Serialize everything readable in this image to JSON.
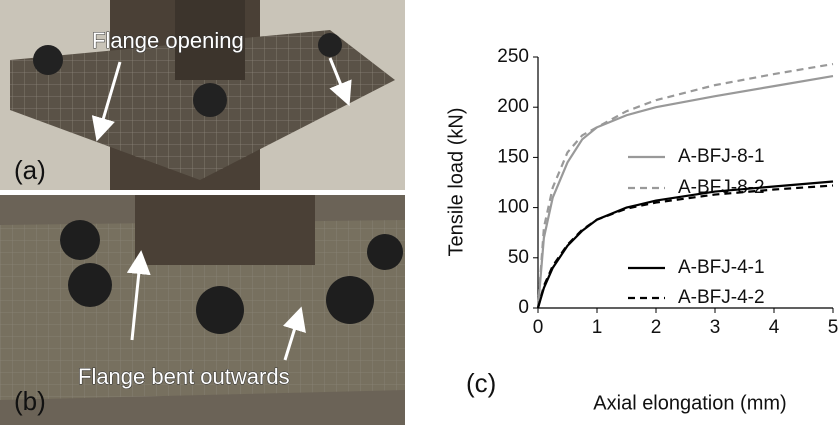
{
  "panels": {
    "a_label": "(a)",
    "a_note": "Flange opening",
    "b_label": "(b)",
    "b_note": "Flange bent outwards"
  },
  "chart_data": {
    "type": "line",
    "panel_label": "(c)",
    "x_label": "Axial elongation (mm)",
    "y_label": "Tensile load (kN)",
    "x": [
      0,
      0.1,
      0.25,
      0.5,
      0.75,
      1,
      1.5,
      2,
      3,
      4,
      5
    ],
    "series": [
      {
        "name": "A-BFJ-8-1",
        "color": "#999999",
        "dash": false,
        "values": [
          0,
          70,
          110,
          145,
          168,
          180,
          192,
          200,
          211,
          221,
          231
        ]
      },
      {
        "name": "A-BFJ-8-2",
        "color": "#999999",
        "dash": true,
        "values": [
          0,
          80,
          120,
          155,
          172,
          180,
          196,
          207,
          222,
          233,
          243
        ]
      },
      {
        "name": "A-BFJ-4-1",
        "color": "#000000",
        "dash": false,
        "values": [
          0,
          20,
          40,
          62,
          77,
          88,
          100,
          107,
          116,
          121,
          126
        ]
      },
      {
        "name": "A-BFJ-4-2",
        "color": "#000000",
        "dash": true,
        "values": [
          0,
          22,
          42,
          63,
          78,
          88,
          99,
          105,
          113,
          118,
          122
        ]
      }
    ],
    "xlim": [
      0,
      5
    ],
    "xticks": [
      0,
      1,
      2,
      3,
      4,
      5
    ],
    "ylim": [
      0,
      250
    ],
    "yticks": [
      0,
      50,
      100,
      150,
      200,
      250
    ],
    "grid": false
  }
}
